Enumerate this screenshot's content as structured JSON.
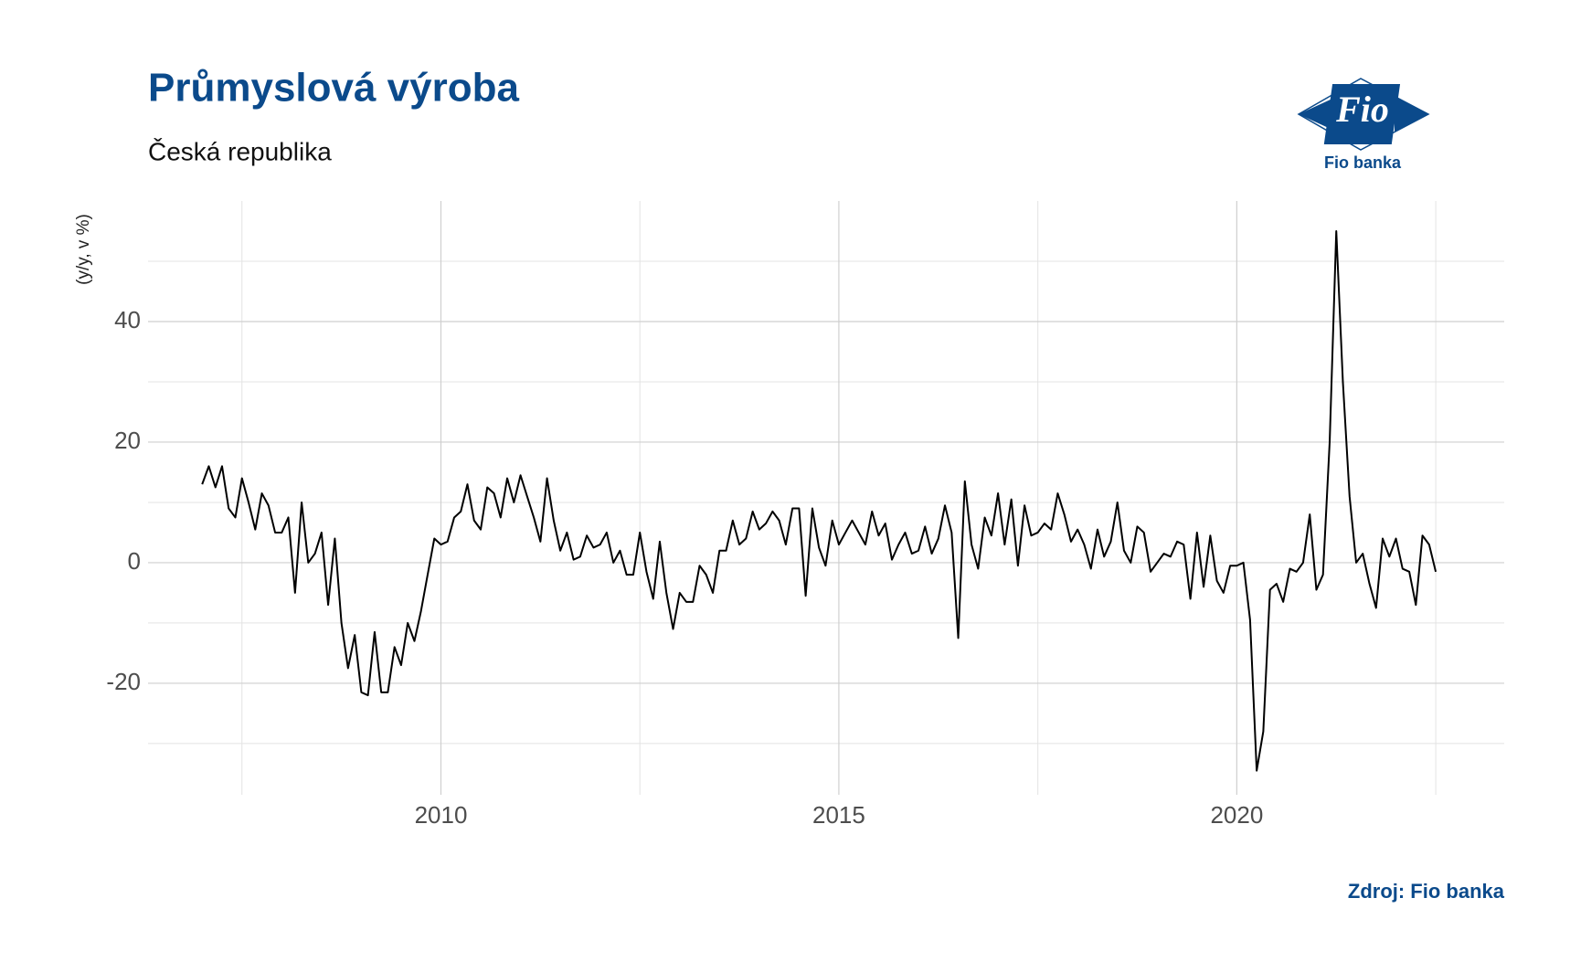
{
  "chart_data": {
    "type": "line",
    "title": "Průmyslová výroba",
    "subtitle": "Česká republika",
    "y_label": "(y/y, v %)",
    "source": "Zdroj: Fio banka",
    "logo": {
      "mark": "Fio",
      "caption": "Fio banka"
    },
    "xlim": [
      2006.32,
      2023.36
    ],
    "ylim": [
      -38.5,
      60
    ],
    "xticks": [
      2010,
      2015,
      2020
    ],
    "yticks": [
      -20,
      0,
      20,
      40
    ],
    "xminor": [
      2007.5,
      2012.5,
      2017.5,
      2022.5
    ],
    "yminor": [
      -30,
      -10,
      10,
      30,
      50
    ],
    "grid": true,
    "x": [
      2007.0,
      2007.083,
      2007.167,
      2007.25,
      2007.333,
      2007.417,
      2007.5,
      2007.583,
      2007.667,
      2007.75,
      2007.833,
      2007.917,
      2008.0,
      2008.083,
      2008.167,
      2008.25,
      2008.333,
      2008.417,
      2008.5,
      2008.583,
      2008.667,
      2008.75,
      2008.833,
      2008.917,
      2009.0,
      2009.083,
      2009.167,
      2009.25,
      2009.333,
      2009.417,
      2009.5,
      2009.583,
      2009.667,
      2009.75,
      2009.833,
      2009.917,
      2010.0,
      2010.083,
      2010.167,
      2010.25,
      2010.333,
      2010.417,
      2010.5,
      2010.583,
      2010.667,
      2010.75,
      2010.833,
      2010.917,
      2011.0,
      2011.083,
      2011.167,
      2011.25,
      2011.333,
      2011.417,
      2011.5,
      2011.583,
      2011.667,
      2011.75,
      2011.833,
      2011.917,
      2012.0,
      2012.083,
      2012.167,
      2012.25,
      2012.333,
      2012.417,
      2012.5,
      2012.583,
      2012.667,
      2012.75,
      2012.833,
      2012.917,
      2013.0,
      2013.083,
      2013.167,
      2013.25,
      2013.333,
      2013.417,
      2013.5,
      2013.583,
      2013.667,
      2013.75,
      2013.833,
      2013.917,
      2014.0,
      2014.083,
      2014.167,
      2014.25,
      2014.333,
      2014.417,
      2014.5,
      2014.583,
      2014.667,
      2014.75,
      2014.833,
      2014.917,
      2015.0,
      2015.083,
      2015.167,
      2015.25,
      2015.333,
      2015.417,
      2015.5,
      2015.583,
      2015.667,
      2015.75,
      2015.833,
      2015.917,
      2016.0,
      2016.083,
      2016.167,
      2016.25,
      2016.333,
      2016.417,
      2016.5,
      2016.583,
      2016.667,
      2016.75,
      2016.833,
      2016.917,
      2017.0,
      2017.083,
      2017.167,
      2017.25,
      2017.333,
      2017.417,
      2017.5,
      2017.583,
      2017.667,
      2017.75,
      2017.833,
      2017.917,
      2018.0,
      2018.083,
      2018.167,
      2018.25,
      2018.333,
      2018.417,
      2018.5,
      2018.583,
      2018.667,
      2018.75,
      2018.833,
      2018.917,
      2019.0,
      2019.083,
      2019.167,
      2019.25,
      2019.333,
      2019.417,
      2019.5,
      2019.583,
      2019.667,
      2019.75,
      2019.833,
      2019.917,
      2020.0,
      2020.083,
      2020.167,
      2020.25,
      2020.333,
      2020.417,
      2020.5,
      2020.583,
      2020.667,
      2020.75,
      2020.833,
      2020.917,
      2021.0,
      2021.083,
      2021.167,
      2021.25,
      2021.333,
      2021.417,
      2021.5,
      2021.583,
      2021.667,
      2021.75,
      2021.833,
      2021.917,
      2022.0,
      2022.083,
      2022.167,
      2022.25,
      2022.333,
      2022.417,
      2022.5
    ],
    "series": [
      {
        "name": "Průmyslová výroba",
        "color": "#000000",
        "values": [
          13,
          16,
          12.5,
          16,
          9,
          7.5,
          14,
          10,
          5.5,
          11.5,
          9.5,
          5,
          5,
          7.5,
          -5,
          10,
          0,
          1.5,
          5,
          -7,
          4,
          -10,
          -17.5,
          -12,
          -21.5,
          -22,
          -11.5,
          -21.5,
          -21.5,
          -14,
          -17,
          -10,
          -13,
          -8,
          -2,
          4,
          3,
          3.5,
          7.5,
          8.5,
          13,
          7,
          5.5,
          12.5,
          11.5,
          7.5,
          14,
          10,
          14.5,
          11,
          7.5,
          3.5,
          14,
          7,
          2,
          5,
          0.5,
          1,
          4.5,
          2.5,
          3,
          5,
          0,
          2,
          -2,
          -2,
          5,
          -1.5,
          -6,
          3.5,
          -5,
          -11,
          -5,
          -6.5,
          -6.5,
          -0.5,
          -2,
          -5,
          2,
          2,
          7,
          3,
          4,
          8.5,
          5.5,
          6.5,
          8.5,
          7,
          3,
          9,
          9,
          -5.5,
          9,
          2.5,
          -0.5,
          7,
          3,
          5,
          7,
          5,
          3,
          8.5,
          4.5,
          6.5,
          0.5,
          3,
          5,
          1.5,
          2,
          6,
          1.5,
          4,
          9.5,
          5,
          -12.5,
          13.5,
          3,
          -1,
          7.5,
          4.5,
          11.5,
          3,
          10.5,
          -0.5,
          9.5,
          4.5,
          5,
          6.5,
          5.5,
          11.5,
          8,
          3.5,
          5.5,
          3,
          -1,
          5.5,
          1,
          3.5,
          10,
          2,
          0,
          6,
          5,
          -1.5,
          0,
          1.5,
          1,
          3.5,
          3,
          -6,
          5,
          -4,
          4.5,
          -3,
          -5,
          -0.5,
          -0.5,
          0,
          -9.5,
          -34.5,
          -28,
          -4.5,
          -3.5,
          -6.5,
          -1,
          -1.5,
          0,
          8,
          -4.5,
          -2,
          20,
          55,
          30,
          11,
          0,
          1.5,
          -3.5,
          -7.5,
          4,
          1,
          4,
          -1,
          -1.5,
          -7,
          4.5,
          3,
          -1.5
        ]
      }
    ]
  }
}
